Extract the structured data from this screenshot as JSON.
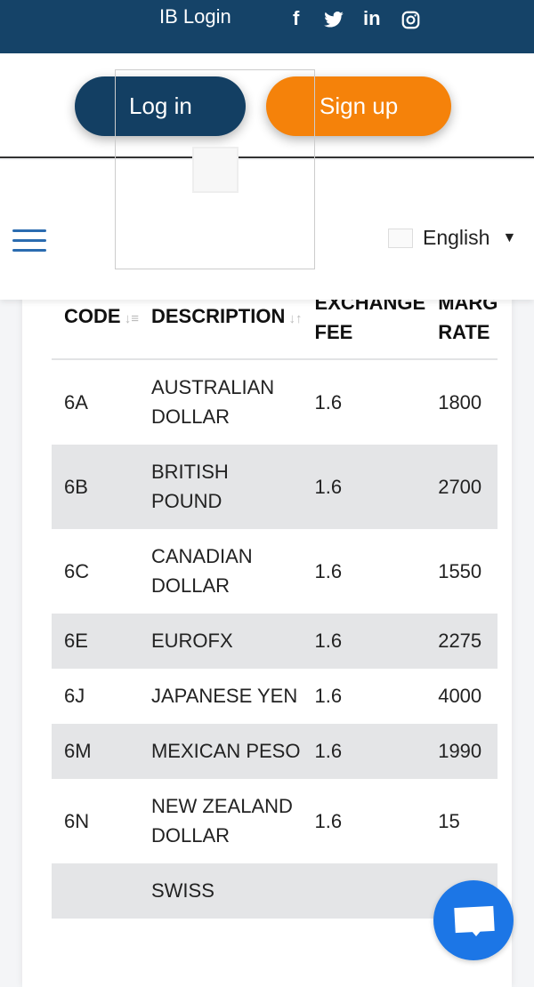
{
  "topbar": {
    "ib_login": "IB Login",
    "social": [
      "f",
      "t",
      "in",
      "ig"
    ]
  },
  "auth": {
    "login": "Log in",
    "signup": "Sign up"
  },
  "nav": {
    "language": "English"
  },
  "table": {
    "headers": [
      "CODE",
      "DESCRIPTION",
      "EXCHANGE FEE",
      "MARGIN RATE"
    ],
    "header_visible": [
      "CODE",
      "DESCRIPTION",
      "EXCHANGE\nFEE",
      "MARG\nRATE"
    ],
    "rows": [
      {
        "code": "6A",
        "desc": "AUSTRALIAN DOLLAR",
        "fee": "1.6",
        "rate": "1800"
      },
      {
        "code": "6B",
        "desc": "BRITISH POUND",
        "fee": "1.6",
        "rate": "2700"
      },
      {
        "code": "6C",
        "desc": "CANADIAN DOLLAR",
        "fee": "1.6",
        "rate": "1550"
      },
      {
        "code": "6E",
        "desc": "EUROFX",
        "fee": "1.6",
        "rate": "2275"
      },
      {
        "code": "6J",
        "desc": "JAPANESE YEN",
        "fee": "1.6",
        "rate": "4000"
      },
      {
        "code": "6M",
        "desc": "MEXICAN PESO",
        "fee": "1.6",
        "rate": "1990"
      },
      {
        "code": "6N",
        "desc": "NEW ZEALAND DOLLAR",
        "fee": "1.6",
        "rate": "15"
      },
      {
        "code": "",
        "desc": "SWISS",
        "fee": "",
        "rate": ""
      }
    ]
  },
  "colors": {
    "brand": "#154368",
    "accent": "#f5820a",
    "chat": "#1c76e6"
  }
}
